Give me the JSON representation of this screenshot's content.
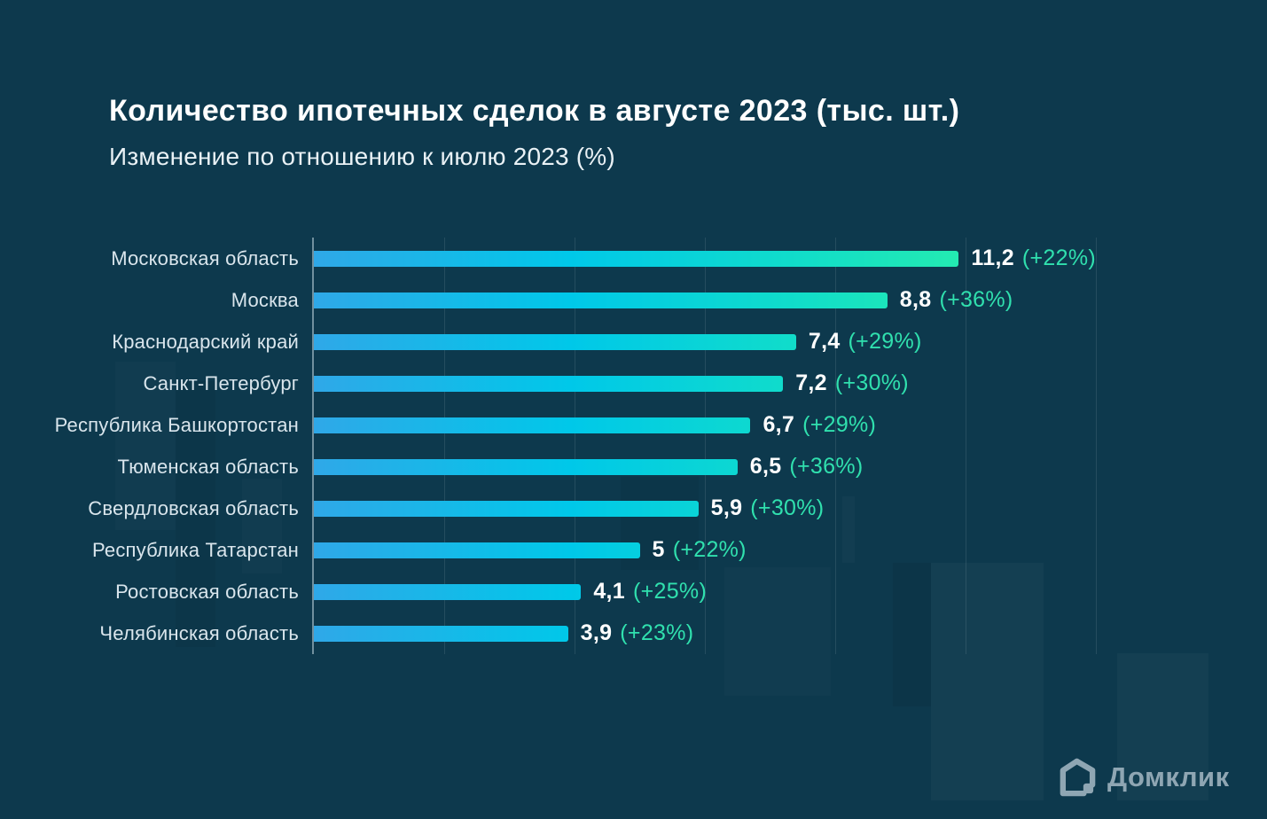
{
  "title": "Количество ипотечных сделок в августе 2023 (тыс. шт.)",
  "subtitle": "Изменение по отношению к июлю 2023 (%)",
  "logo": {
    "text": "Домклик",
    "icon": "house-icon"
  },
  "colors": {
    "background": "#0d394d",
    "bar_gradient": [
      "#2fa8e8",
      "#00c8e9",
      "#10dccb",
      "#2df2a5"
    ],
    "value_color": "#ffffff",
    "percent_color": "#30e0ae",
    "label_color": "#d9e5ec",
    "grid_color": "rgba(255,255,255,0.10)",
    "axis_color": "rgba(213,231,240,0.5)",
    "logo_color": "#8fa6b3"
  },
  "chart_data": {
    "type": "bar",
    "orientation": "horizontal",
    "title": "Количество ипотечных сделок в августе 2023 (тыс. шт.)",
    "subtitle": "Изменение по отношению к июлю 2023 (%)",
    "categories": [
      "Московская область",
      "Москва",
      "Краснодарский край",
      "Санкт-Петербург",
      "Республика Башкортостан",
      "Тюменская область",
      "Свердловская область",
      "Республика Татарстан",
      "Ростовская область",
      "Челябинская область"
    ],
    "values": [
      11.2,
      8.8,
      7.4,
      7.2,
      6.7,
      6.5,
      5.9,
      5,
      4.1,
      3.9
    ],
    "value_labels": [
      "11,2",
      "8,8",
      "7,4",
      "7,2",
      "6,7",
      "6,5",
      "5,9",
      "5",
      "4,1",
      "3,9"
    ],
    "change_labels": [
      "(+22%)",
      "(+36%)",
      "(+29%)",
      "(+30%)",
      "(+29%)",
      "(+36%)",
      "(+30%)",
      "(+22%)",
      "(+25%)",
      "(+23%)"
    ],
    "xlim": [
      0,
      12
    ],
    "gridline_step": 2,
    "grid": "vertical",
    "legend": "none",
    "value_labels_position": "right-of-bar"
  }
}
